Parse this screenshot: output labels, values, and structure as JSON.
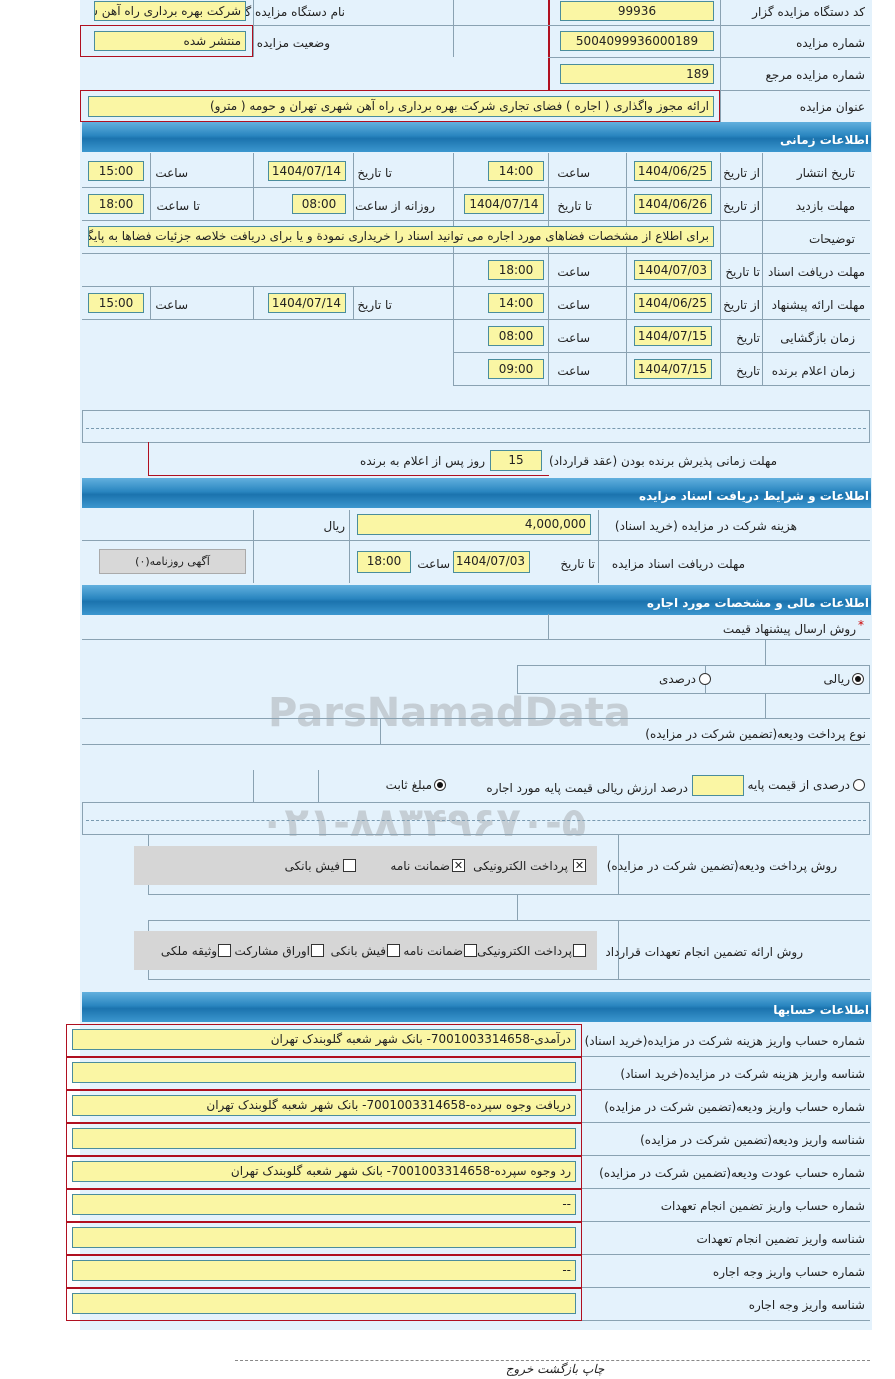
{
  "general": {
    "org_code_label": "کد دستگاه مزایده گزار",
    "org_code": "99936",
    "org_name_label": "نام دستگاه مزایده گزار",
    "org_name": "شرکت بهره برداری راه آهن ش",
    "auction_no_label": "شماره مزایده",
    "auction_no": "5004099936000189",
    "status_label": "وضعیت مزایده",
    "status": "منتشر شده",
    "ref_no_label": "شماره مزایده مرجع",
    "ref_no": "189",
    "title_label": "عنوان مزایده",
    "title": "ارائه مجوز واگذاری ( اجاره ) فضای تجاری شرکت بهره برداری راه آهن شهری تهران و حومه ( مترو)"
  },
  "time": {
    "header": "اطلاعات زمانی",
    "from_date": "از تاریخ",
    "to_date": "تا تاریخ",
    "hour": "ساعت",
    "to_hour": "تا ساعت",
    "daily_from": "روزانه از ساعت",
    "date": "تاریخ",
    "publish_label": "تاریخ انتشار",
    "publish_from": "1404/06/25",
    "publish_from_time": "14:00",
    "publish_to": "1404/07/14",
    "publish_to_time": "15:00",
    "visit_label": "مهلت بازدید",
    "visit_from": "1404/06/26",
    "visit_to": "1404/07/14",
    "visit_daily_from": "08:00",
    "visit_daily_to": "18:00",
    "desc_label": "توضیحات",
    "desc": "برای اطلاع از مشخصات فضاهای مورد اجاره می توانید اسناد را خریداری نمودة و یا برای دریافت خلاصه جزئیات فضاها به پایگاه",
    "docs_label": "مهلت دریافت اسناد",
    "docs_to": "1404/07/03",
    "docs_time": "18:00",
    "offer_label": "مهلت ارائه پیشنهاد",
    "offer_from": "1404/06/25",
    "offer_from_time": "14:00",
    "offer_to": "1404/07/14",
    "offer_to_time": "15:00",
    "opening_label": "زمان بازگشایی",
    "opening_date": "1404/07/15",
    "opening_time": "08:00",
    "winner_label": "زمان اعلام برنده",
    "winner_date": "1404/07/15",
    "winner_time": "09:00",
    "accept_label": "مهلت زمانی پذیرش برنده بودن (عقد قرارداد)",
    "accept_days": "15",
    "accept_suffix": "روز پس از اعلام به برنده"
  },
  "docs": {
    "header": "اطلاعات و شرایط دریافت اسناد مزایده",
    "fee_label": "هزینه شرکت در مزایده (خرید اسناد)",
    "fee": "4,000,000",
    "currency": "ریال",
    "deadline_label": "مهلت دریافت اسناد مزایده",
    "to_date": "تا تاریخ",
    "date": "1404/07/03",
    "hour": "ساعت",
    "time": "18:00",
    "newspaper_button": "آگهی روزنامه(۰)"
  },
  "finance": {
    "header": "اطلاعات مالی و مشخصات مورد اجاره",
    "required_mark": "*",
    "price_method_label": "روش ارسال پیشنهاد قیمت",
    "price_options": [
      {
        "label": "ریالی",
        "selected": true
      },
      {
        "label": "درصدی",
        "selected": false
      }
    ],
    "deposit_type_label": "نوع پرداخت ودیعه(تضمین شرکت در مزایده)",
    "deposit_percent_label": "درصدی از قیمت پایه",
    "deposit_percent_selected": false,
    "deposit_percent_value": "",
    "deposit_percent_suffix": "درصد ارزش ریالی قیمت پایه مورد اجاره",
    "deposit_fixed_label": "مبلغ ثابت",
    "deposit_fixed_selected": true,
    "deposit_method_label": "روش پرداخت ودیعه(تضمین شرکت در مزایده)",
    "deposit_methods": [
      {
        "label": "پرداخت الکترونیکی",
        "checked": true
      },
      {
        "label": "ضمانت نامه",
        "checked": true
      },
      {
        "label": "فیش بانکی",
        "checked": false
      }
    ],
    "guarantee_label": "روش ارائه تضمین انجام تعهدات قرارداد",
    "guarantee_methods": [
      {
        "label": "پرداخت الکترونیکی",
        "checked": false
      },
      {
        "label": "ضمانت نامه",
        "checked": false
      },
      {
        "label": "فیش بانکی",
        "checked": false
      },
      {
        "label": "اوراق مشارکت",
        "checked": false
      },
      {
        "label": "وثیقه ملکی",
        "checked": false
      }
    ]
  },
  "accounts": {
    "header": "اطلاعات حسابها",
    "rows": [
      {
        "label": "شماره حساب واریز هزینه شرکت در مزایده(خرید اسناد)",
        "value": "درآمدی-7001003314658- بانک شهر شعبه گلوبندک تهران"
      },
      {
        "label": "شناسه واریز هزینه شرکت در مزایده(خرید اسناد)",
        "value": ""
      },
      {
        "label": "شماره حساب واریز ودیعه(تضمین شرکت در مزایده)",
        "value": "دریافت وجوه سپرده-7001003314658- بانک شهر شعبه گلوبندک تهران"
      },
      {
        "label": "شناسه واریز ودیعه(تضمین شرکت در مزایده)",
        "value": ""
      },
      {
        "label": "شماره حساب عودت ودیعه(تضمین شرکت در مزایده)",
        "value": "رد وجوه سپرده-7001003314658- بانک شهر شعبه گلوبندک تهران"
      },
      {
        "label": "شماره حساب واریز تضمین انجام تعهدات",
        "value": "--"
      },
      {
        "label": "شناسه واریز تضمین انجام تعهدات",
        "value": ""
      },
      {
        "label": "شماره حساب واریز وجه اجاره",
        "value": "--"
      },
      {
        "label": "شناسه واریز وجه اجاره",
        "value": ""
      }
    ]
  },
  "footer": {
    "print": "چاپ",
    "back": "بازگشت",
    "exit": "خروج"
  },
  "watermark": {
    "brand": "ParsNamadData",
    "phone": "۰۲۱-۸۸۳۴۹۶۷۰-۵"
  },
  "colors": {
    "input_bg": "#faf6a4",
    "header_blue": "#2a86c0",
    "form_bg": "#e4f2fc"
  }
}
